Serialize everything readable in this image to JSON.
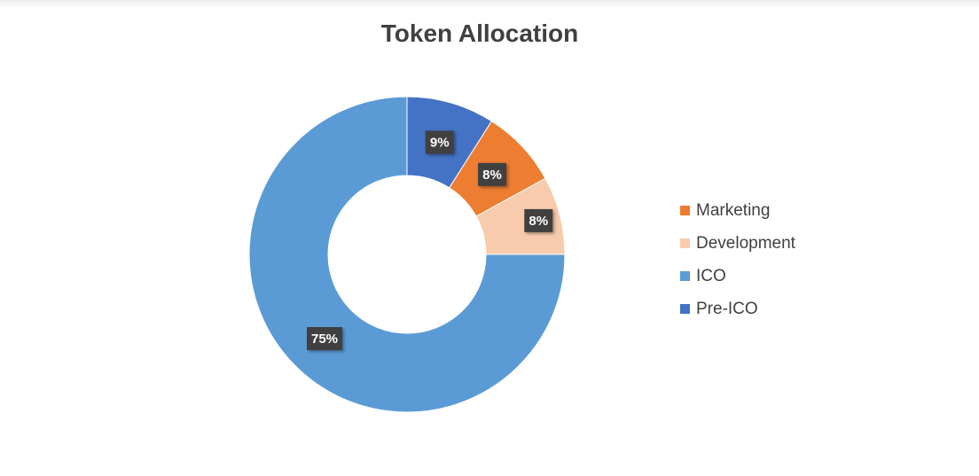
{
  "chart_data": {
    "type": "pie",
    "title": "Token Allocation",
    "series": [
      {
        "slices": [
          {
            "name": "Pre-ICO",
            "value": 9,
            "label": "9%",
            "color": "#4472C4"
          },
          {
            "name": "Marketing",
            "value": 8,
            "label": "8%",
            "color": "#ED7D31"
          },
          {
            "name": "Development",
            "value": 8,
            "label": "8%",
            "color": "#F8CBAD"
          },
          {
            "name": "ICO",
            "value": 75,
            "label": "75%",
            "color": "#5B9BD5"
          }
        ]
      }
    ],
    "legend": {
      "position": "right",
      "items": [
        {
          "name": "Marketing",
          "color": "#ED7D31"
        },
        {
          "name": "Development",
          "color": "#F8CBAD"
        },
        {
          "name": "ICO",
          "color": "#5B9BD5"
        },
        {
          "name": "Pre-ICO",
          "color": "#4472C4"
        }
      ]
    },
    "hole": "donut"
  }
}
